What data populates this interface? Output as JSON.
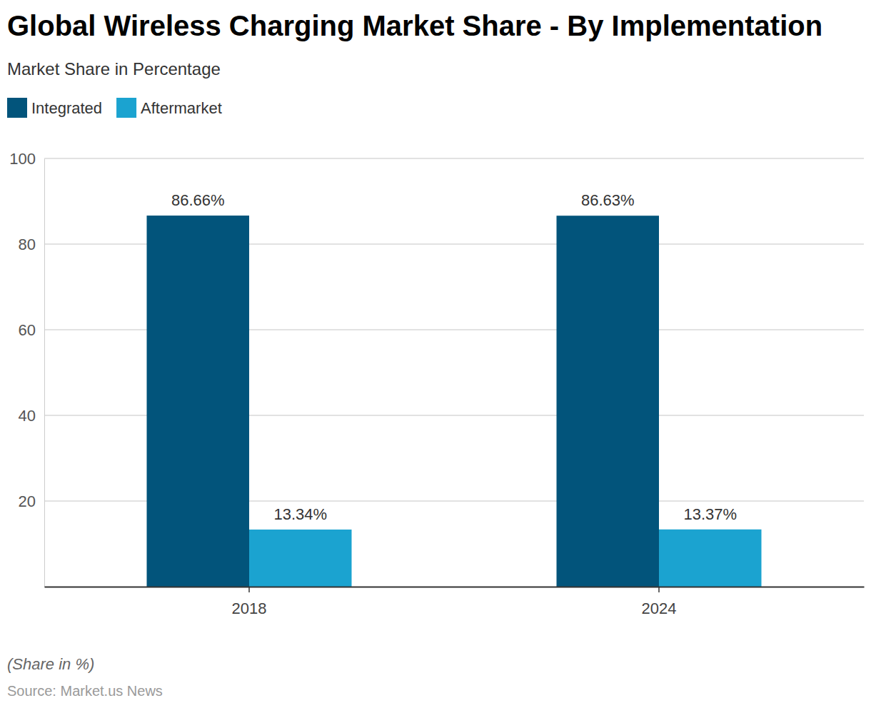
{
  "chart_data": {
    "type": "bar",
    "title": "Global Wireless Charging Market Share - By Implementation",
    "subtitle": "Market Share in Percentage",
    "caption": "(Share in %)",
    "source": "Source: Market.us News",
    "categories": [
      "2018",
      "2024"
    ],
    "series": [
      {
        "name": "Integrated",
        "color": "#02547b",
        "values": [
          86.66,
          86.63
        ],
        "value_labels": [
          "86.66%",
          "86.63%"
        ]
      },
      {
        "name": "Aftermarket",
        "color": "#1ba3d0",
        "values": [
          13.34,
          13.37
        ],
        "value_labels": [
          "13.34%",
          "13.37%"
        ]
      }
    ],
    "ylim": [
      0,
      100
    ],
    "yticks": [
      20,
      40,
      60,
      80,
      100
    ],
    "grid": true,
    "legend": "top-left",
    "data_labels": true
  }
}
